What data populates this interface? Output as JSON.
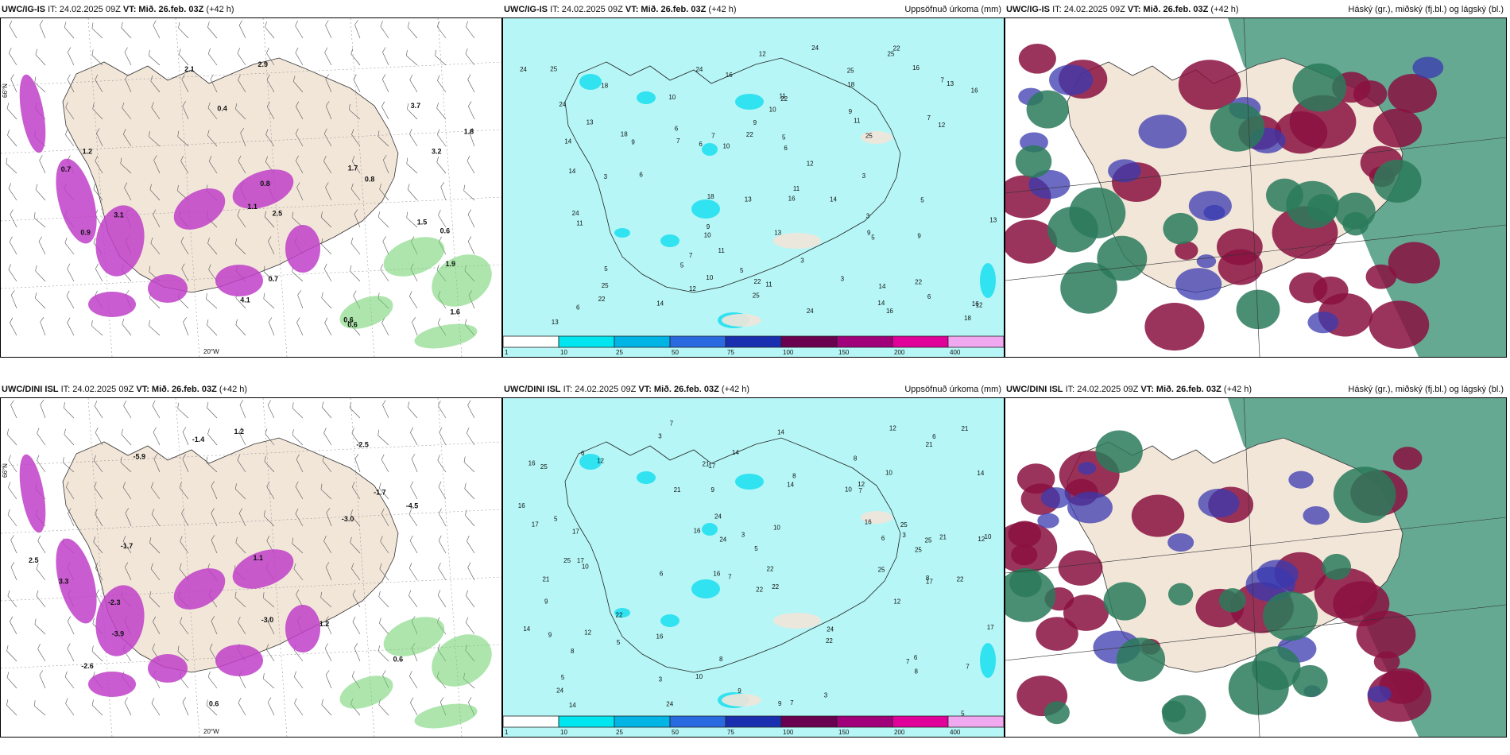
{
  "panels": [
    {
      "model": "UWC/IG-IS",
      "it": "IT: 24.02.2025 09Z",
      "vt_label": "VT:",
      "vt": "Mið. 26.feb. 03Z",
      "lead": "(+42 h)",
      "product": ""
    },
    {
      "model": "UWC/IG-IS",
      "it": "IT: 24.02.2025 09Z",
      "vt_label": "VT:",
      "vt": "Mið. 26.feb. 03Z",
      "lead": "(+42 h)",
      "product": "Uppsöfnuð úrkoma (mm)"
    },
    {
      "model": "UWC/IG-IS",
      "it": "IT: 24.02.2025 09Z",
      "vt_label": "VT:",
      "vt": "Mið. 26.feb. 03Z",
      "lead": "(+42 h)",
      "product": "Háský (gr.), miðský (fj.bl.) og lágský (bl.)"
    },
    {
      "model": "UWC/DINI ISL",
      "it": "IT: 24.02.2025 09Z",
      "vt_label": "VT:",
      "vt": "Mið. 26.feb. 03Z",
      "lead": "(+42 h)",
      "product": ""
    },
    {
      "model": "UWC/DINI ISL",
      "it": "IT: 24.02.2025 09Z",
      "vt_label": "VT:",
      "vt": "Mið. 26.feb. 03Z",
      "lead": "(+42 h)",
      "product": "Uppsöfnuð úrkoma (mm)"
    },
    {
      "model": "UWC/DINI ISL",
      "it": "IT: 24.02.2025 09Z",
      "vt_label": "VT:",
      "vt": "Mið. 26.feb. 03Z",
      "lead": "(+42 h)",
      "product": "Háský (gr.), miðský (fj.bl.) og lágský (bl.)"
    }
  ],
  "precip_legend": {
    "ticks": [
      "1",
      "10",
      "25",
      "50",
      "75",
      "100",
      "150",
      "200",
      "400"
    ],
    "colors": [
      "#ffffff",
      "#00e6f0",
      "#00b4e6",
      "#2a6ae0",
      "#1a2fb0",
      "#6a0050",
      "#a0007a",
      "#e0009a",
      "#f0a8f0"
    ]
  },
  "colors": {
    "land": "#f2e6d9",
    "sea_precip": "#b6f6f6",
    "precip_cyan": "#22e0f0",
    "sea_temp_magenta": "#c040c8",
    "temp_green": "#6ad06a",
    "cloud_high": "#2a7a5a",
    "cloud_mid": "#8a1040",
    "cloud_low": "#3a3ab0",
    "cloud_bg": "#4a9a80"
  },
  "map_text": {
    "grid_lat": "66°N",
    "grid_lon": "20°W",
    "temp_labels_top": [
      "1.9",
      "1.5",
      "3.7",
      "3.2",
      "0.4",
      "0.6",
      "1.8",
      "3.1",
      "2.5",
      "4.1",
      "2.9",
      "1.7",
      "0.8",
      "0.6",
      "0.7",
      "1.2",
      "0.9",
      "2.1",
      "1.6",
      "0.7",
      "1.1",
      "0.8",
      "0.6"
    ],
    "temp_labels_bot": [
      "-2.6",
      "-2.5",
      "-5.9",
      "-1.7",
      "-3.0",
      "-1.7",
      "-2.3",
      "-3.9",
      "-4.5",
      "-3.0",
      "3.3",
      "1.2",
      "1.2",
      "1.1",
      "0.6",
      "-1.4",
      "0.6",
      "2.5"
    ],
    "precip_labels_top": [
      "6",
      "9",
      "11",
      "13",
      "16",
      "24",
      "22",
      "25",
      "14",
      "5",
      "18",
      "7",
      "10",
      "12",
      "3"
    ],
    "precip_labels_bot": [
      "7",
      "8",
      "12",
      "16",
      "22",
      "17",
      "25",
      "10",
      "21",
      "14",
      "5",
      "24",
      "3",
      "6",
      "9"
    ]
  }
}
